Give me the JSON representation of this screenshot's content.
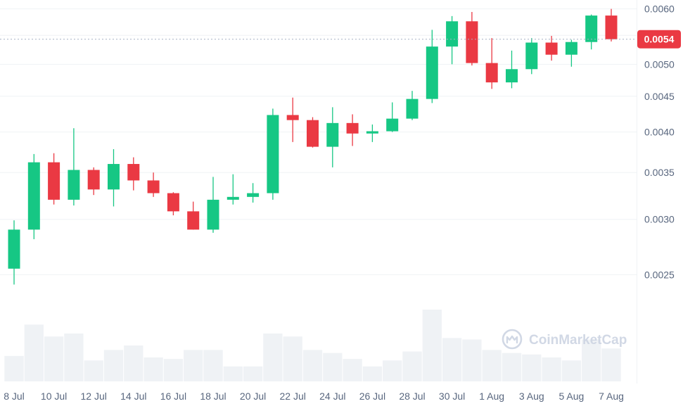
{
  "chart_data": {
    "type": "candlestick",
    "x": [
      "8 Jul",
      "9 Jul",
      "10 Jul",
      "11 Jul",
      "12 Jul",
      "13 Jul",
      "14 Jul",
      "15 Jul",
      "16 Jul",
      "17 Jul",
      "18 Jul",
      "19 Jul",
      "20 Jul",
      "21 Jul",
      "22 Jul",
      "23 Jul",
      "24 Jul",
      "25 Jul",
      "26 Jul",
      "27 Jul",
      "28 Jul",
      "29 Jul",
      "30 Jul",
      "31 Jul",
      "1 Aug",
      "2 Aug",
      "3 Aug",
      "4 Aug",
      "5 Aug",
      "6 Aug",
      "7 Aug"
    ],
    "x_tick_labels": [
      "8 Jul",
      "10 Jul",
      "12 Jul",
      "14 Jul",
      "16 Jul",
      "18 Jul",
      "20 Jul",
      "22 Jul",
      "24 Jul",
      "26 Jul",
      "28 Jul",
      "30 Jul",
      "1 Aug",
      "3 Aug",
      "5 Aug",
      "7 Aug"
    ],
    "open": [
      0.00255,
      0.0029,
      0.00362,
      0.0032,
      0.00353,
      0.00331,
      0.0036,
      0.00341,
      0.00327,
      0.00308,
      0.0029,
      0.0032,
      0.00323,
      0.00327,
      0.00423,
      0.00416,
      0.00381,
      0.00412,
      0.00398,
      0.00401,
      0.00418,
      0.00446,
      0.0053,
      0.00576,
      0.00502,
      0.00471,
      0.00492,
      0.00537,
      0.00516,
      0.00538,
      0.00587
    ],
    "high": [
      0.00299,
      0.00372,
      0.00373,
      0.00405,
      0.00356,
      0.00378,
      0.00368,
      0.0035,
      0.00328,
      0.00318,
      0.00345,
      0.00348,
      0.00338,
      0.00432,
      0.00448,
      0.0042,
      0.00434,
      0.00424,
      0.0041,
      0.00441,
      0.00458,
      0.0056,
      0.00586,
      0.00594,
      0.00545,
      0.00523,
      0.00545,
      0.00549,
      0.00542,
      0.00589,
      0.006
    ],
    "low": [
      0.00242,
      0.00281,
      0.00315,
      0.00314,
      0.00325,
      0.00313,
      0.0033,
      0.00323,
      0.00304,
      0.0029,
      0.00287,
      0.00315,
      0.00317,
      0.0032,
      0.00387,
      0.0038,
      0.00356,
      0.00382,
      0.00387,
      0.004,
      0.00416,
      0.0044,
      0.005,
      0.00498,
      0.00461,
      0.00462,
      0.00484,
      0.00506,
      0.00496,
      0.00525,
      0.00539
    ],
    "close": [
      0.0029,
      0.00362,
      0.0032,
      0.00353,
      0.00331,
      0.0036,
      0.00341,
      0.00327,
      0.00308,
      0.0029,
      0.0032,
      0.00323,
      0.00327,
      0.00423,
      0.00416,
      0.00381,
      0.00412,
      0.00398,
      0.00401,
      0.00418,
      0.00446,
      0.0053,
      0.00576,
      0.00502,
      0.00471,
      0.00492,
      0.00537,
      0.00516,
      0.00538,
      0.00587,
      0.00543
    ],
    "volume": [
      0.17,
      0.38,
      0.3,
      0.32,
      0.14,
      0.21,
      0.24,
      0.16,
      0.15,
      0.21,
      0.21,
      0.1,
      0.1,
      0.32,
      0.3,
      0.21,
      0.19,
      0.15,
      0.1,
      0.14,
      0.2,
      0.48,
      0.29,
      0.28,
      0.21,
      0.19,
      0.18,
      0.16,
      0.14,
      0.28,
      0.22
    ],
    "ylim": [
      0.00227,
      0.00615
    ],
    "y_scale": "log",
    "y_tick_labels": [
      "0.0025",
      "0.0030",
      "0.0035",
      "0.0040",
      "0.0045",
      "0.0050",
      "0.0060"
    ],
    "current_price_label": "0.0054",
    "grid": true,
    "colors": {
      "up": "#16c784",
      "down": "#ea3943",
      "volume": "#eff2f5",
      "grid": "#eff2f5",
      "axis_text": "#58667e",
      "price_badge": "#ea3943",
      "watermark": "#cfd6e4"
    }
  },
  "watermark": {
    "text": "CoinMarketCap",
    "icon": "coinmarketcap-logo-icon"
  }
}
